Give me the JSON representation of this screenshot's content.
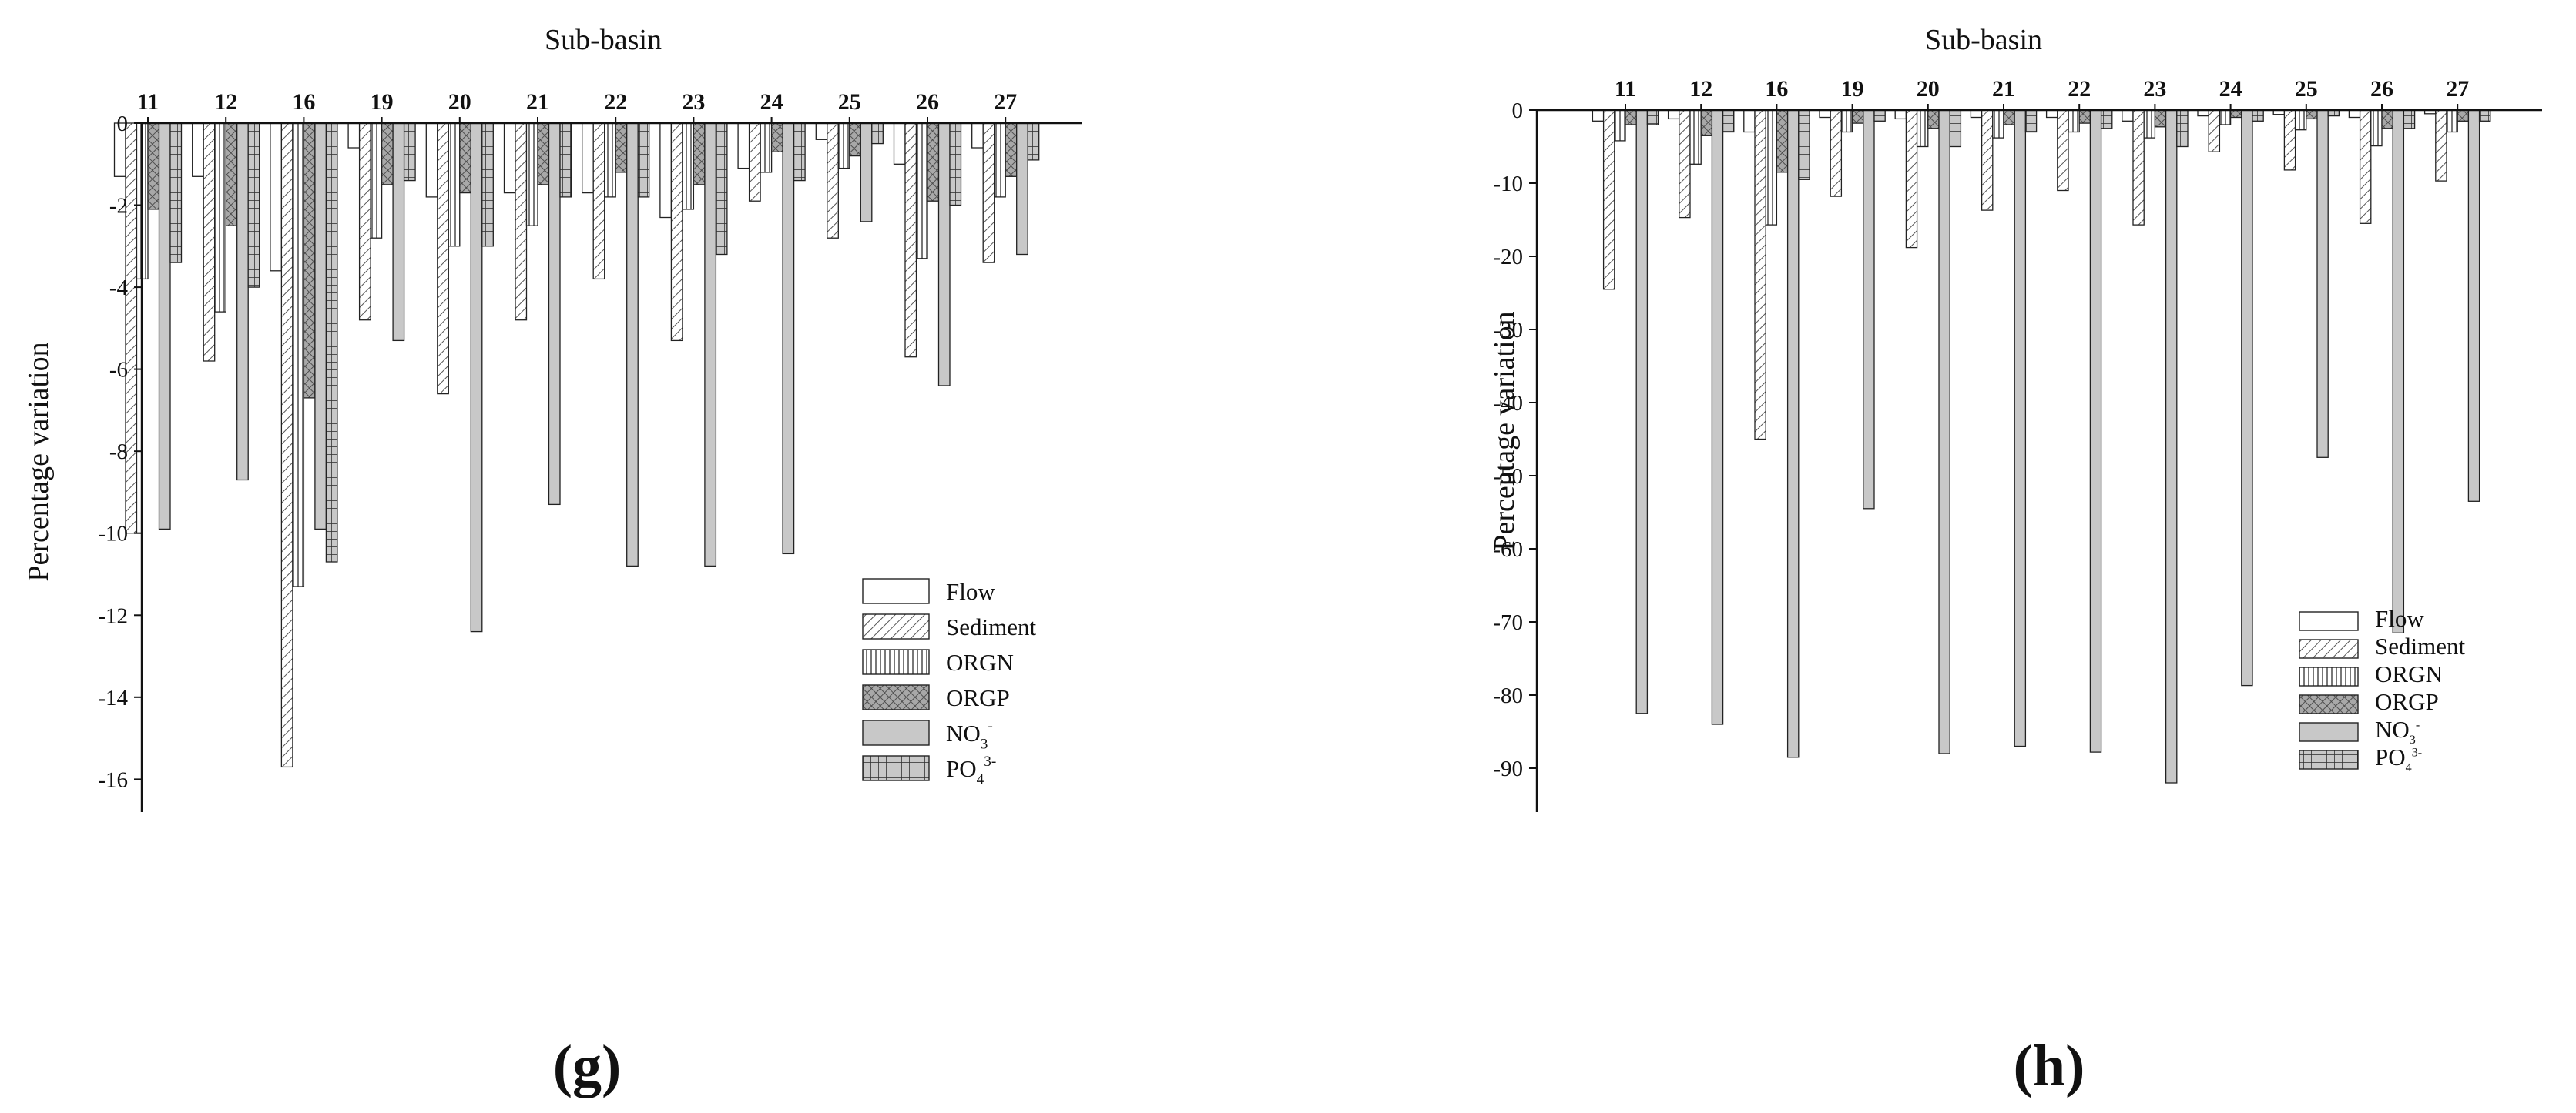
{
  "charts": [
    {
      "panel_label": "(g)",
      "title": "Sub-basin",
      "ylabel": "Percentage variation"
    },
    {
      "panel_label": "(h)",
      "title": "Sub-basin",
      "ylabel": "Percentage variation"
    }
  ],
  "legend": [
    "Flow",
    "Sediment",
    "ORGN",
    "ORGP",
    "NO",
    "PO"
  ],
  "legend_markup": {
    "no3": {
      "base": "NO",
      "sub": "3",
      "sup": "-"
    },
    "po4": {
      "base": "PO",
      "sub": "4",
      "sup": "3-"
    }
  },
  "colors": {
    "axis": "#111111",
    "fill": "#c8c8c8",
    "hatch": "#555555",
    "bg": "#ffffff"
  },
  "chart_data": [
    {
      "type": "bar",
      "title": "Sub-basin",
      "ylabel": "Percentage variation",
      "xlabel": "",
      "categories": [
        "11",
        "12",
        "16",
        "19",
        "20",
        "21",
        "22",
        "23",
        "24",
        "25",
        "26",
        "27"
      ],
      "ylim": [
        -16.8,
        0
      ],
      "yticks": [
        0,
        -2,
        -4,
        -6,
        -8,
        -10,
        -12,
        -14,
        -16
      ],
      "legend_position": "bottom-right",
      "grid": false,
      "series": [
        {
          "name": "Flow",
          "values": [
            -1.3,
            -1.3,
            -3.6,
            -0.6,
            -1.8,
            -1.7,
            -1.7,
            -2.3,
            -1.1,
            -0.4,
            -1.0,
            -0.6
          ]
        },
        {
          "name": "Sediment",
          "values": [
            -10.0,
            -5.8,
            -15.7,
            -4.8,
            -6.6,
            -4.8,
            -3.8,
            -5.3,
            -1.9,
            -2.8,
            -5.7,
            -3.4
          ]
        },
        {
          "name": "ORGN",
          "values": [
            -3.8,
            -4.6,
            -11.3,
            -2.8,
            -3.0,
            -2.5,
            -1.8,
            -2.1,
            -1.2,
            -1.1,
            -3.3,
            -1.8
          ]
        },
        {
          "name": "ORGP",
          "values": [
            -2.1,
            -2.5,
            -6.7,
            -1.5,
            -1.7,
            -1.5,
            -1.2,
            -1.5,
            -0.7,
            -0.8,
            -1.9,
            -1.3
          ]
        },
        {
          "name": "NO3-",
          "values": [
            -9.9,
            -8.7,
            -9.9,
            -5.3,
            -12.4,
            -9.3,
            -10.8,
            -10.8,
            -10.5,
            -2.4,
            -6.4,
            -3.2
          ]
        },
        {
          "name": "PO43-",
          "values": [
            -3.4,
            -4.0,
            -10.7,
            -1.4,
            -3.0,
            -1.8,
            -1.8,
            -3.2,
            -1.4,
            -0.5,
            -2.0,
            -0.9
          ]
        }
      ]
    },
    {
      "type": "bar",
      "title": "Sub-basin",
      "ylabel": "Percentage variation",
      "xlabel": "",
      "categories": [
        "11",
        "12",
        "16",
        "19",
        "20",
        "21",
        "22",
        "23",
        "24",
        "25",
        "26",
        "27"
      ],
      "ylim": [
        -96,
        0
      ],
      "yticks": [
        0,
        -10,
        -20,
        -30,
        -40,
        -50,
        -60,
        -70,
        -80,
        -90
      ],
      "legend_position": "bottom-right",
      "grid": false,
      "series": [
        {
          "name": "Flow",
          "values": [
            -1.5,
            -1.2,
            -3.0,
            -1.0,
            -1.2,
            -1.0,
            -1.0,
            -1.5,
            -0.8,
            -0.6,
            -1.0,
            -0.5
          ]
        },
        {
          "name": "Sediment",
          "values": [
            -24.5,
            -14.7,
            -45.0,
            -11.8,
            -18.8,
            -13.7,
            -11.0,
            -15.7,
            -5.7,
            -8.2,
            -15.5,
            -9.7
          ]
        },
        {
          "name": "ORGN",
          "values": [
            -4.2,
            -7.4,
            -15.7,
            -3.0,
            -5.0,
            -3.8,
            -3.0,
            -3.8,
            -2.0,
            -2.7,
            -4.9,
            -3.0
          ]
        },
        {
          "name": "ORGP",
          "values": [
            -2.0,
            -3.5,
            -8.5,
            -1.8,
            -2.5,
            -2.0,
            -1.8,
            -2.3,
            -1.0,
            -1.2,
            -2.5,
            -1.5
          ]
        },
        {
          "name": "NO3-",
          "values": [
            -82.5,
            -84.0,
            -88.5,
            -54.5,
            -88.0,
            -87.0,
            -87.8,
            -92.0,
            -78.7,
            -47.5,
            -71.5,
            -53.5
          ]
        },
        {
          "name": "PO43-",
          "values": [
            -2.0,
            -3.0,
            -9.5,
            -1.5,
            -5.0,
            -3.0,
            -2.5,
            -5.0,
            -1.5,
            -0.8,
            -2.5,
            -1.5
          ]
        }
      ]
    }
  ]
}
